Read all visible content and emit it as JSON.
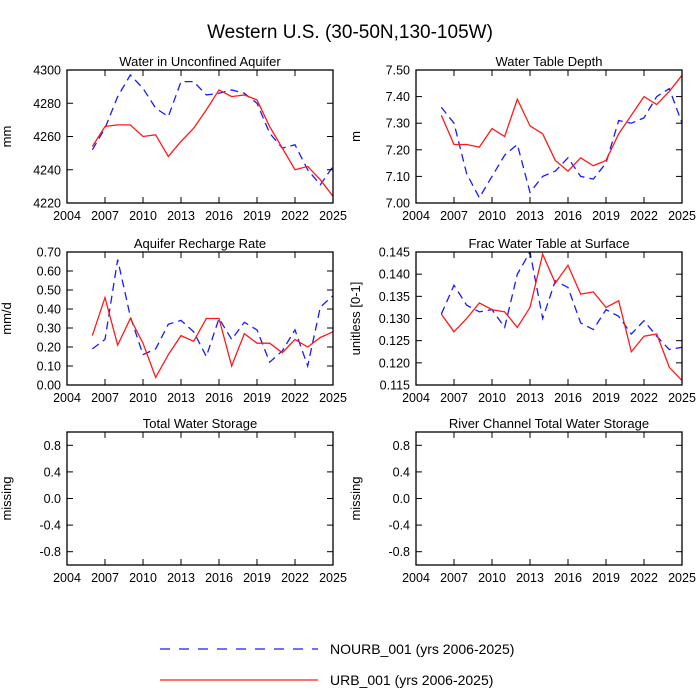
{
  "figure_title": "Western U.S. (30-50N,130-105W)",
  "colors": {
    "nourb": "#1a1aff",
    "urb": "#ff1a1a",
    "axis": "#000000"
  },
  "legend": [
    {
      "label": "NOURB_001 (yrs 2006-2025)",
      "style": "dashed",
      "color": "#1a1aff"
    },
    {
      "label": "URB_001 (yrs 2006-2025)",
      "style": "solid",
      "color": "#ff1a1a"
    }
  ],
  "chart_data": [
    {
      "type": "line",
      "title": "Water in Unconfined Aquifer",
      "ylabel": "mm",
      "xlim": [
        2004,
        2025
      ],
      "ylim": [
        4220,
        4300
      ],
      "x_ticks": [
        "2004",
        "2007",
        "2010",
        "2013",
        "2016",
        "2019",
        "2022",
        "2025"
      ],
      "y_ticks": [
        "4220",
        "4240",
        "4260",
        "4280",
        "4300"
      ],
      "x": [
        2006,
        2007,
        2008,
        2009,
        2010,
        2011,
        2012,
        2013,
        2014,
        2015,
        2016,
        2017,
        2018,
        2019,
        2020,
        2021,
        2022,
        2023,
        2024,
        2025
      ],
      "series": [
        {
          "name": "NOURB_001",
          "values": [
            4252,
            4265,
            4284,
            4297,
            4289,
            4277,
            4272,
            4293,
            4293,
            4285,
            4286,
            4288,
            4286,
            4280,
            4262,
            4253,
            4255,
            4240,
            4231,
            4242
          ]
        },
        {
          "name": "URB_001",
          "values": [
            4254,
            4266,
            4267,
            4267,
            4260,
            4261,
            4248,
            4257,
            4265,
            4276,
            4288,
            4284,
            4285,
            4282,
            4266,
            4253,
            4240,
            4242,
            4234,
            4224
          ]
        }
      ]
    },
    {
      "type": "line",
      "title": "Water Table Depth",
      "ylabel": "m",
      "xlim": [
        2004,
        2025
      ],
      "ylim": [
        7.0,
        7.5
      ],
      "x_ticks": [
        "2004",
        "2007",
        "2010",
        "2013",
        "2016",
        "2019",
        "2022",
        "2025"
      ],
      "y_ticks": [
        "7.00",
        "7.10",
        "7.20",
        "7.30",
        "7.40",
        "7.50"
      ],
      "x": [
        2006,
        2007,
        2008,
        2009,
        2010,
        2011,
        2012,
        2013,
        2014,
        2015,
        2016,
        2017,
        2018,
        2019,
        2020,
        2021,
        2022,
        2023,
        2024,
        2025
      ],
      "series": [
        {
          "name": "NOURB_001",
          "values": [
            7.36,
            7.3,
            7.11,
            7.02,
            7.1,
            7.18,
            7.22,
            7.04,
            7.1,
            7.12,
            7.17,
            7.1,
            7.09,
            7.15,
            7.31,
            7.3,
            7.32,
            7.4,
            7.43,
            7.3
          ]
        },
        {
          "name": "URB_001",
          "values": [
            7.33,
            7.22,
            7.22,
            7.21,
            7.28,
            7.25,
            7.39,
            7.29,
            7.26,
            7.16,
            7.12,
            7.17,
            7.14,
            7.16,
            7.26,
            7.33,
            7.4,
            7.37,
            7.42,
            7.48
          ]
        }
      ]
    },
    {
      "type": "line",
      "title": "Aquifer Recharge Rate",
      "ylabel": "mm/d",
      "xlim": [
        2004,
        2025
      ],
      "ylim": [
        0.0,
        0.7
      ],
      "x_ticks": [
        "2004",
        "2007",
        "2010",
        "2013",
        "2016",
        "2019",
        "2022",
        "2025"
      ],
      "y_ticks": [
        "0.00",
        "0.10",
        "0.20",
        "0.30",
        "0.40",
        "0.50",
        "0.60",
        "0.70"
      ],
      "x": [
        2006,
        2007,
        2008,
        2009,
        2010,
        2011,
        2012,
        2013,
        2014,
        2015,
        2016,
        2017,
        2018,
        2019,
        2020,
        2021,
        2022,
        2023,
        2024,
        2025
      ],
      "series": [
        {
          "name": "NOURB_001",
          "values": [
            0.19,
            0.24,
            0.66,
            0.36,
            0.16,
            0.19,
            0.32,
            0.34,
            0.28,
            0.15,
            0.35,
            0.24,
            0.33,
            0.29,
            0.12,
            0.18,
            0.29,
            0.1,
            0.41,
            0.47
          ]
        },
        {
          "name": "URB_001",
          "values": [
            0.26,
            0.46,
            0.21,
            0.35,
            0.22,
            0.04,
            0.16,
            0.26,
            0.23,
            0.35,
            0.35,
            0.1,
            0.27,
            0.22,
            0.22,
            0.17,
            0.24,
            0.2,
            0.25,
            0.28
          ]
        }
      ]
    },
    {
      "type": "line",
      "title": "Frac Water Table at Surface",
      "ylabel": "unitless [0-1]",
      "xlim": [
        2004,
        2025
      ],
      "ylim": [
        0.115,
        0.145
      ],
      "x_ticks": [
        "2004",
        "2007",
        "2010",
        "2013",
        "2016",
        "2019",
        "2022",
        "2025"
      ],
      "y_ticks": [
        "0.115",
        "0.120",
        "0.125",
        "0.130",
        "0.135",
        "0.140",
        "0.145"
      ],
      "x": [
        2006,
        2007,
        2008,
        2009,
        2010,
        2011,
        2012,
        2013,
        2014,
        2015,
        2016,
        2017,
        2018,
        2019,
        2020,
        2021,
        2022,
        2023,
        2024,
        2025
      ],
      "series": [
        {
          "name": "NOURB_001",
          "values": [
            0.131,
            0.1375,
            0.133,
            0.1315,
            0.132,
            0.128,
            0.14,
            0.145,
            0.13,
            0.1385,
            0.137,
            0.129,
            0.1275,
            0.132,
            0.1305,
            0.1265,
            0.1295,
            0.126,
            0.123,
            0.1235
          ]
        },
        {
          "name": "URB_001",
          "values": [
            0.131,
            0.127,
            0.13,
            0.1335,
            0.132,
            0.1315,
            0.128,
            0.1325,
            0.1445,
            0.138,
            0.142,
            0.1355,
            0.136,
            0.1325,
            0.134,
            0.1225,
            0.126,
            0.1265,
            0.119,
            0.116
          ]
        }
      ]
    },
    {
      "type": "line",
      "title": "Total Water Storage",
      "ylabel": "missing",
      "xlim": [
        2004,
        2025
      ],
      "ylim": [
        -1.0,
        1.0
      ],
      "x_ticks": [
        "2004",
        "2007",
        "2010",
        "2013",
        "2016",
        "2019",
        "2022",
        "2025"
      ],
      "y_ticks": [
        "-0.8",
        "-0.4",
        "0.0",
        "0.4",
        "0.8"
      ],
      "x": [],
      "series": []
    },
    {
      "type": "line",
      "title": "River Channel Total Water Storage",
      "ylabel": "missing",
      "xlim": [
        2004,
        2025
      ],
      "ylim": [
        -1.0,
        1.0
      ],
      "x_ticks": [
        "2004",
        "2007",
        "2010",
        "2013",
        "2016",
        "2019",
        "2022",
        "2025"
      ],
      "y_ticks": [
        "-0.8",
        "-0.4",
        "0.0",
        "0.4",
        "0.8"
      ],
      "x": [],
      "series": []
    }
  ]
}
